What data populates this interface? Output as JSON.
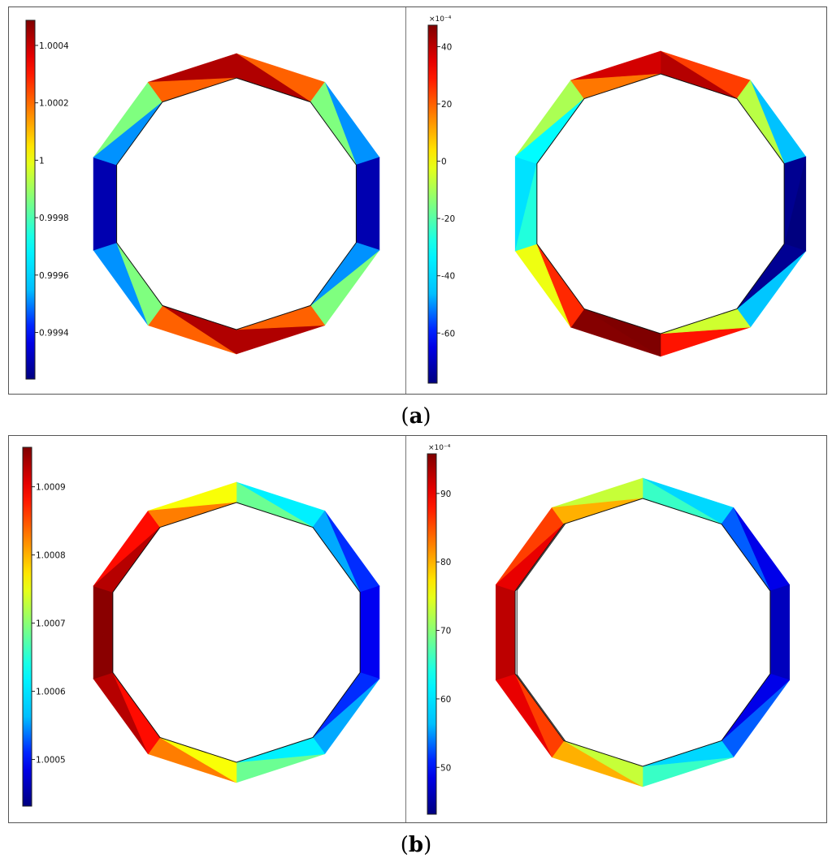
{
  "figure": {
    "panels": [
      {
        "caption_open": "(",
        "caption_letter": "a",
        "caption_close": ")",
        "left_colorbar": {
          "labels": [
            "1.0004",
            "1.0002",
            "1",
            "0.9998",
            "0.9996",
            "0.9994"
          ],
          "multiplier": ""
        },
        "right_colorbar": {
          "labels": [
            "40",
            "20",
            "0",
            "-20",
            "-40",
            "-60"
          ],
          "multiplier": "×10⁻⁴"
        }
      },
      {
        "caption_open": "(",
        "caption_letter": "b",
        "caption_close": ")",
        "left_colorbar": {
          "labels": [
            "1.0009",
            "1.0008",
            "1.0007",
            "1.0006",
            "1.0005"
          ],
          "multiplier": ""
        },
        "right_colorbar": {
          "labels": [
            "90",
            "80",
            "70",
            "60",
            "50"
          ],
          "multiplier": "×10⁻⁴"
        }
      }
    ],
    "colormap": [
      "#00007f",
      "#0000ff",
      "#00bfff",
      "#00ffff",
      "#7fff7f",
      "#ffff00",
      "#ff7f00",
      "#ff0000",
      "#7f0000"
    ]
  }
}
